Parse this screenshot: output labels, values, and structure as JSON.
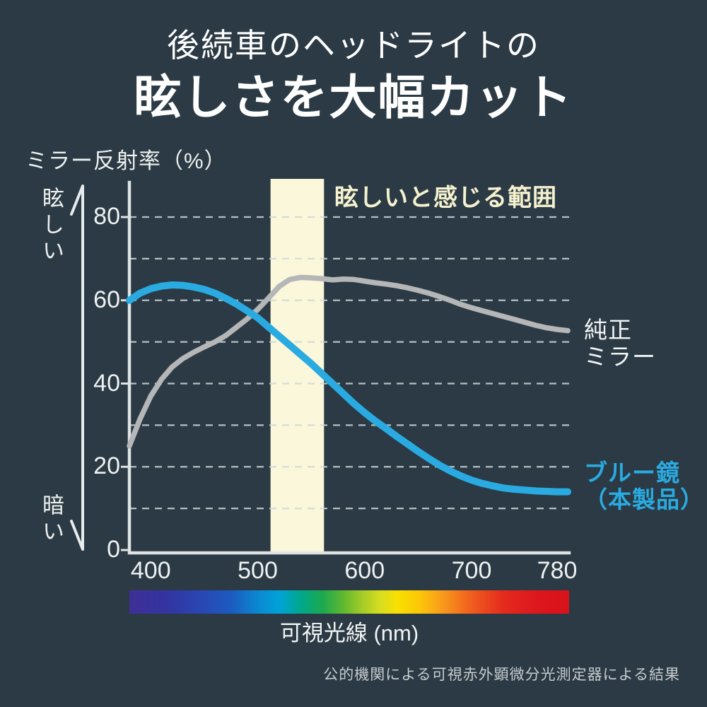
{
  "title": {
    "line1": "後続車のヘッドライトの",
    "line2": "眩しさを大幅カット"
  },
  "chart": {
    "y_axis_title": "ミラー反射率（%）",
    "bright_label": "眩しい",
    "dark_label": "暗い",
    "band_label": "眩しいと感じる範囲",
    "legend_gray_line1": "純正",
    "legend_gray_line2": "ミラー",
    "legend_blue_line1": "ブルー鏡",
    "legend_blue_line2": "（本製品）",
    "x_axis_title": "可視光線 (nm)"
  },
  "footer": {
    "note": "公的機関による可視赤外顕微分光測定器による結果"
  },
  "colors": {
    "background": "#2b3a44",
    "title_text": "#ffffff",
    "band": "#fbf7da",
    "band_label_text": "#f6f2cf",
    "accent_blue": "#29abe2",
    "curve_gray": "#b5b6b7",
    "axis": "#dfe3e4",
    "grid": "#cfd8da",
    "tick_text": "#eef1f1",
    "footer_text": "#c7cccf"
  },
  "chart_data": {
    "type": "line",
    "title": "ミラー反射率（%）vs 可視光線 (nm)",
    "xlabel": "可視光線 (nm)",
    "ylabel": "ミラー反射率（%）",
    "xlim": [
      380,
      795
    ],
    "ylim": [
      0,
      88
    ],
    "x_ticks": [
      400,
      500,
      600,
      700,
      780
    ],
    "y_ticks": [
      0,
      20,
      40,
      60,
      80
    ],
    "grid_values": [
      10,
      20,
      30,
      40,
      50,
      60,
      70,
      80
    ],
    "grid_on": true,
    "glare_band_nm": [
      512,
      562
    ],
    "legend_position": "right",
    "spectrum_stops": [
      {
        "offset": "0%",
        "color": "#3f2f96"
      },
      {
        "offset": "8%",
        "color": "#3333a0"
      },
      {
        "offset": "16%",
        "color": "#2a46b2"
      },
      {
        "offset": "23%",
        "color": "#1c5ac0"
      },
      {
        "offset": "29%",
        "color": "#0b86d0"
      },
      {
        "offset": "34%",
        "color": "#00a2d8"
      },
      {
        "offset": "39%",
        "color": "#00a88b"
      },
      {
        "offset": "44%",
        "color": "#1ca94f"
      },
      {
        "offset": "49%",
        "color": "#66b92e"
      },
      {
        "offset": "53%",
        "color": "#a5cc27"
      },
      {
        "offset": "57%",
        "color": "#d6dd20"
      },
      {
        "offset": "61%",
        "color": "#f8e000"
      },
      {
        "offset": "66%",
        "color": "#fbc708"
      },
      {
        "offset": "71%",
        "color": "#f89c1b"
      },
      {
        "offset": "77%",
        "color": "#f2641e"
      },
      {
        "offset": "85%",
        "color": "#e42a1d"
      },
      {
        "offset": "93%",
        "color": "#dd161d"
      },
      {
        "offset": "100%",
        "color": "#d8121a"
      }
    ],
    "series": [
      {
        "name": "純正ミラー",
        "color": "#b5b6b7",
        "stroke_width": 7.5,
        "x": [
          380,
          390,
          400,
          410,
          420,
          430,
          440,
          450,
          460,
          470,
          480,
          490,
          500,
          510,
          520,
          530,
          540,
          550,
          560,
          570,
          580,
          590,
          600,
          610,
          620,
          630,
          640,
          650,
          660,
          670,
          680,
          690,
          700,
          710,
          720,
          730,
          740,
          750,
          760,
          770,
          780,
          790
        ],
        "y": [
          25.0,
          31.5,
          37.0,
          41.0,
          44.0,
          46.0,
          47.5,
          48.8,
          50.0,
          51.5,
          53.5,
          55.5,
          57.8,
          60.5,
          63.3,
          65.0,
          65.5,
          65.4,
          65.2,
          64.9,
          65.1,
          65.0,
          64.6,
          64.2,
          63.9,
          63.5,
          63.0,
          62.4,
          61.7,
          60.9,
          60.0,
          59.0,
          58.2,
          57.5,
          56.8,
          56.1,
          55.4,
          54.7,
          54.0,
          53.4,
          53.0,
          52.7
        ]
      },
      {
        "name": "ブルー鏡（本製品）",
        "color": "#29abe2",
        "stroke_width": 10,
        "x": [
          380,
          390,
          400,
          410,
          420,
          430,
          440,
          450,
          460,
          470,
          480,
          490,
          500,
          510,
          520,
          530,
          540,
          550,
          560,
          570,
          580,
          590,
          600,
          610,
          620,
          630,
          640,
          650,
          660,
          670,
          680,
          690,
          700,
          710,
          720,
          730,
          740,
          750,
          760,
          770,
          780,
          790
        ],
        "y": [
          60.0,
          61.7,
          62.8,
          63.4,
          63.7,
          63.6,
          63.2,
          62.6,
          61.7,
          60.5,
          59.1,
          57.5,
          55.8,
          53.6,
          51.4,
          49.2,
          47.0,
          44.8,
          42.4,
          40.0,
          37.6,
          35.2,
          33.0,
          31.0,
          29.2,
          27.3,
          25.5,
          23.7,
          22.0,
          20.4,
          19.0,
          17.8,
          16.8,
          16.0,
          15.4,
          14.9,
          14.6,
          14.4,
          14.2,
          14.1,
          14.0,
          14.0
        ]
      }
    ]
  }
}
